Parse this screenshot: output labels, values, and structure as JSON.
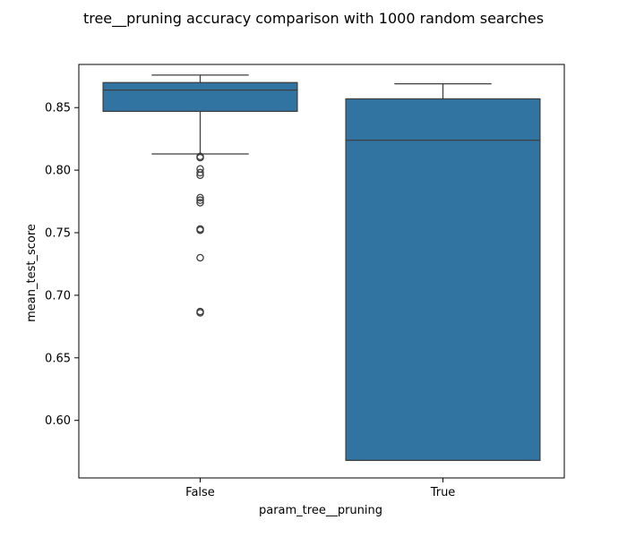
{
  "chart_data": {
    "type": "box",
    "title": "tree__pruning accuracy comparison with 1000 random searches",
    "xlabel": "param_tree__pruning",
    "ylabel": "mean_test_score",
    "categories": [
      "False",
      "True"
    ],
    "ylim": [
      0.554,
      0.8845
    ],
    "yticks": [
      0.6,
      0.65,
      0.7,
      0.75,
      0.8,
      0.85
    ],
    "ytick_labels": [
      "0.60",
      "0.65",
      "0.70",
      "0.75",
      "0.80",
      "0.85"
    ],
    "grid": false,
    "legend": "none",
    "box_color": "#3274a1",
    "line_color": "#3f3f3f",
    "boxes": [
      {
        "category": "False",
        "whisker_low": 0.813,
        "q1": 0.847,
        "median": 0.864,
        "q3": 0.87,
        "whisker_high": 0.876,
        "outliers": [
          0.811,
          0.81,
          0.801,
          0.798,
          0.796,
          0.778,
          0.776,
          0.774,
          0.753,
          0.752,
          0.73,
          0.687,
          0.686
        ]
      },
      {
        "category": "True",
        "whisker_low": 0.568,
        "q1": 0.568,
        "median": 0.824,
        "q3": 0.857,
        "whisker_high": 0.869,
        "outliers": []
      }
    ]
  }
}
